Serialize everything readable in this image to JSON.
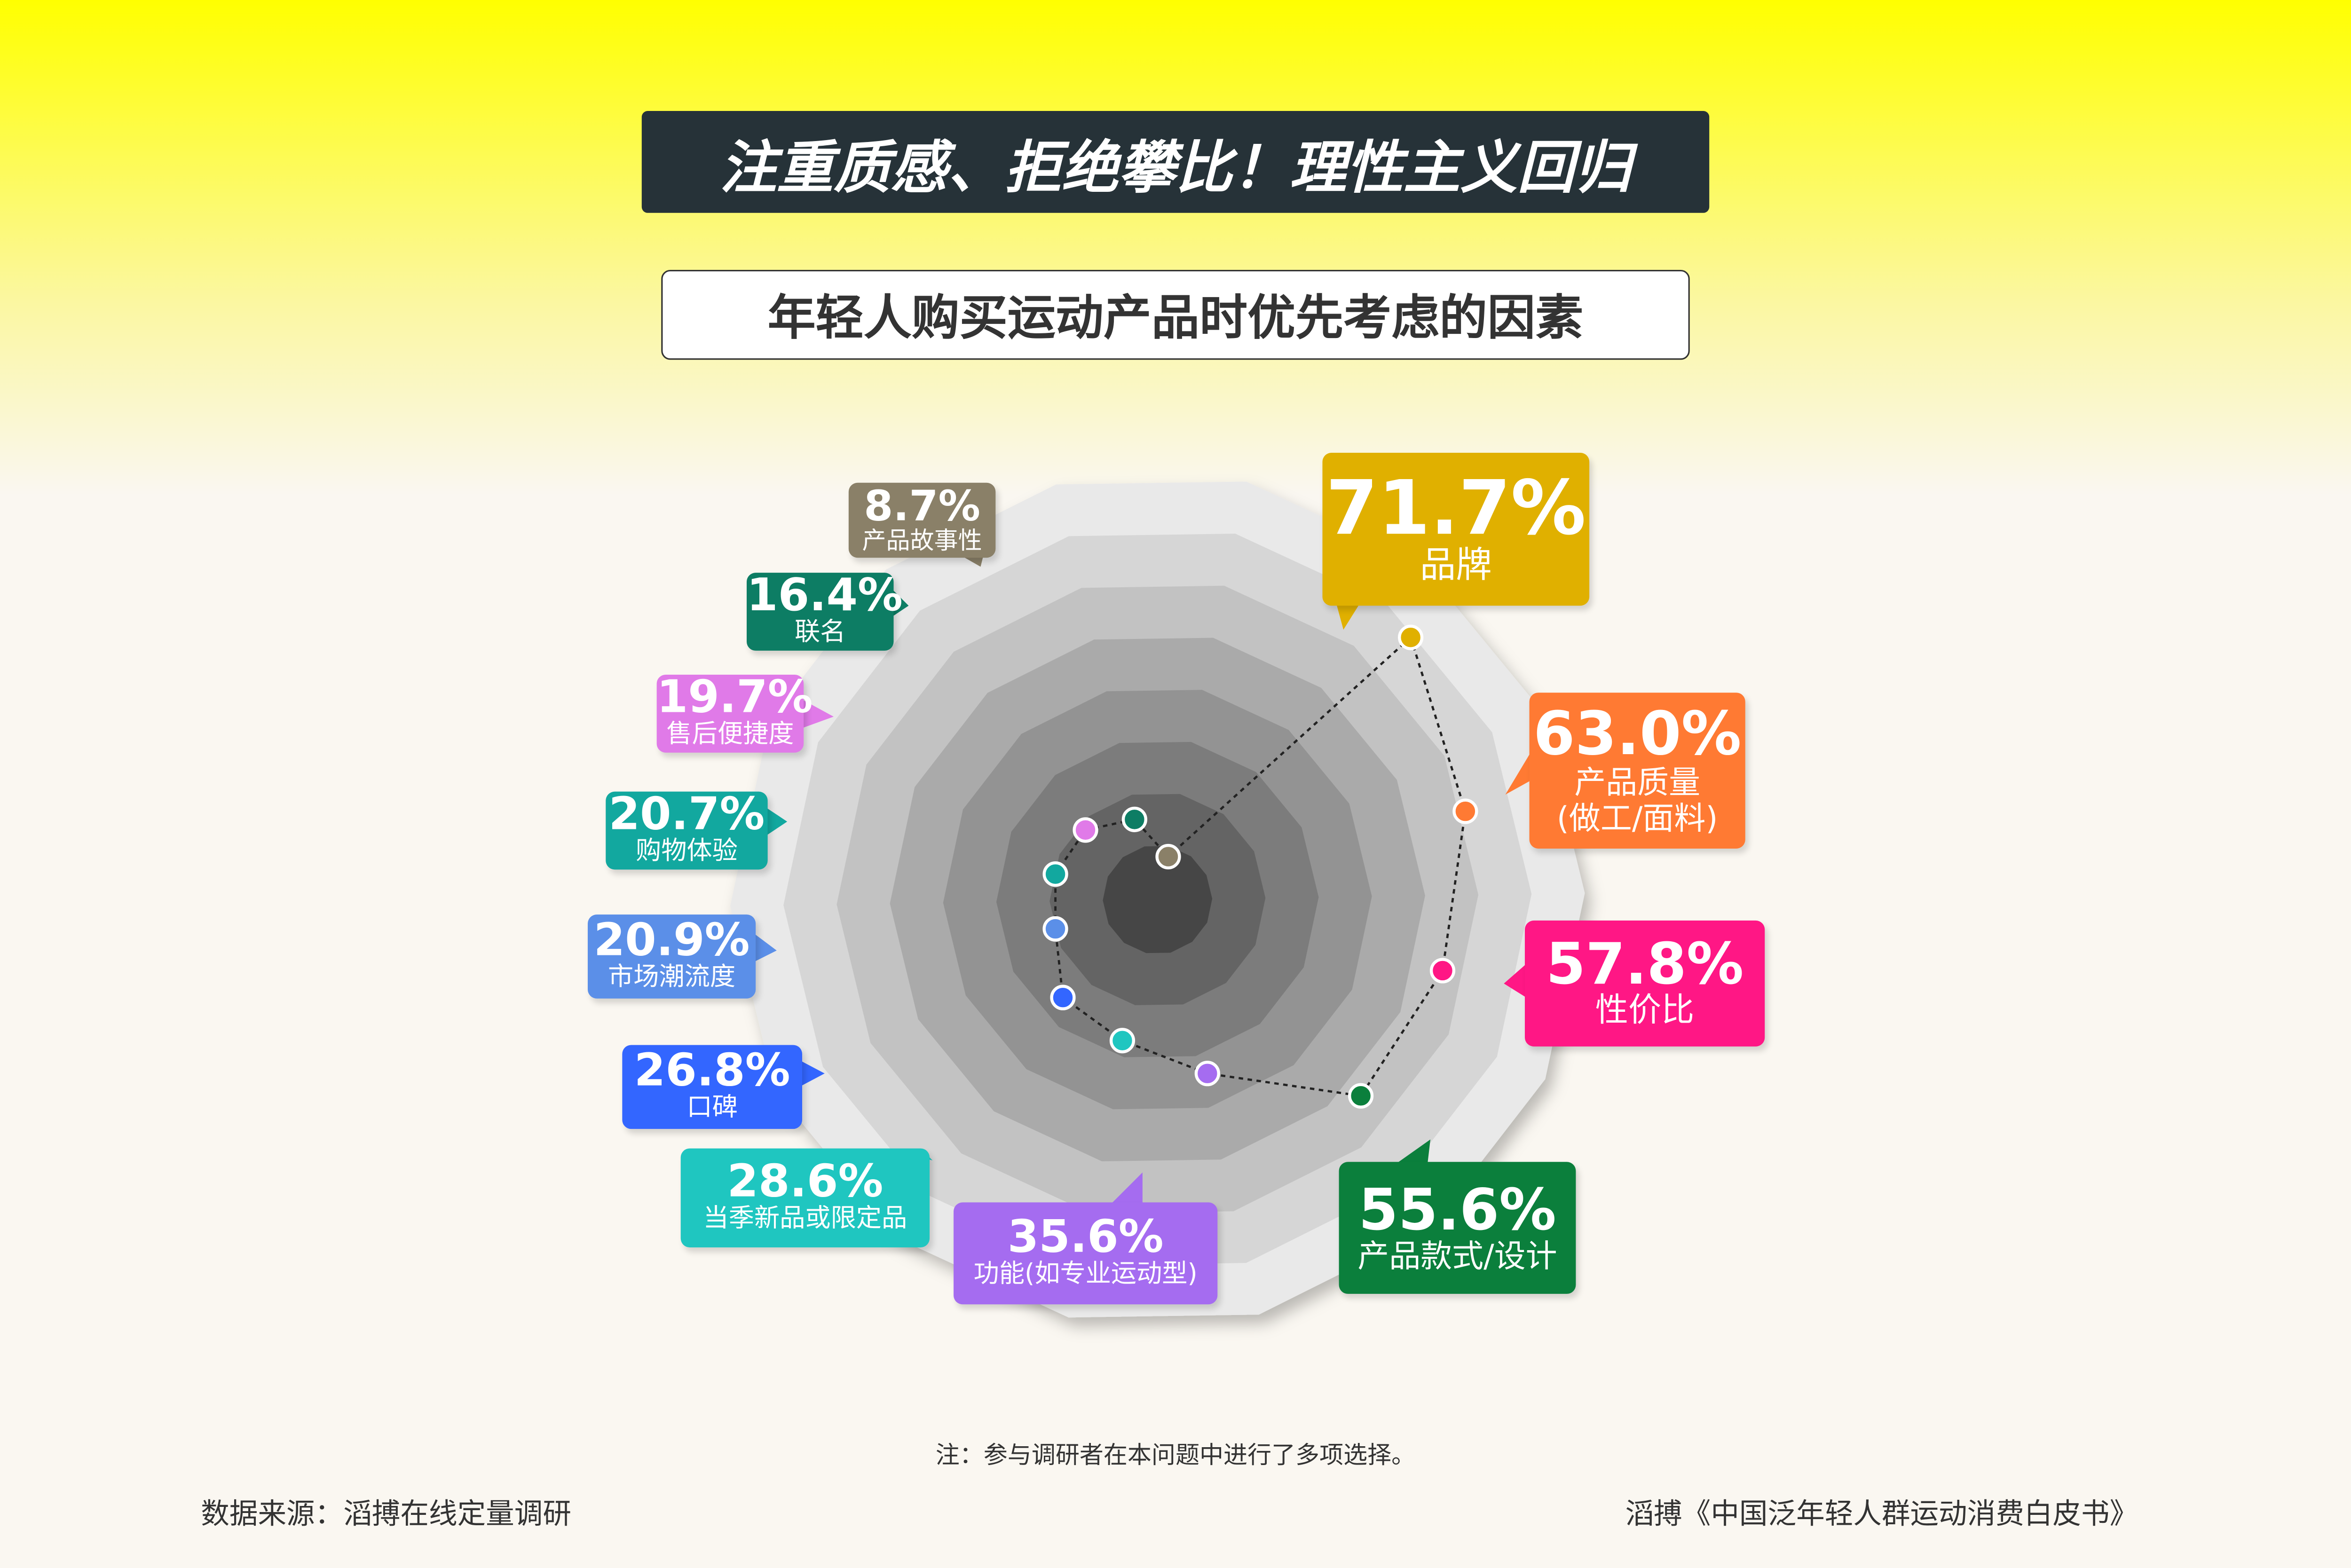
{
  "title": "注重质感、拒绝攀比！理性主义回归",
  "subtitle": "年轻人购买运动产品时优先考虑的因素",
  "note": "注：参与调研者在本问题中进行了多项选择。",
  "source": "数据来源：滔搏在线定量调研",
  "report": "滔搏《中国泛年轻人群运动消费白皮书》",
  "chart_data": {
    "type": "radar",
    "categories": [
      "品牌",
      "产品质量\n(做工/面料)",
      "性价比",
      "产品款式/设计",
      "功能(如专业运动型)",
      "当季新品或限定品",
      "口碑",
      "市场潮流度",
      "购物体验",
      "售后便捷度",
      "联名",
      "产品故事性"
    ],
    "values": [
      71.7,
      63.0,
      57.8,
      55.6,
      35.6,
      28.6,
      26.8,
      20.9,
      20.7,
      19.7,
      16.4,
      8.7
    ],
    "value_labels": [
      "71.7%",
      "63.0%",
      "57.8%",
      "55.6%",
      "35.6%",
      "28.6%",
      "26.8%",
      "20.9%",
      "20.7%",
      "19.7%",
      "16.4%",
      "8.7%"
    ],
    "colors": [
      "#e0b000",
      "#ff7a33",
      "#ff1785",
      "#0b7f3c",
      "#a56cf0",
      "#1fc6c0",
      "#3366ff",
      "#5b8fe8",
      "#12a89f",
      "#e07ae8",
      "#0d7d64",
      "#8a8068"
    ]
  }
}
